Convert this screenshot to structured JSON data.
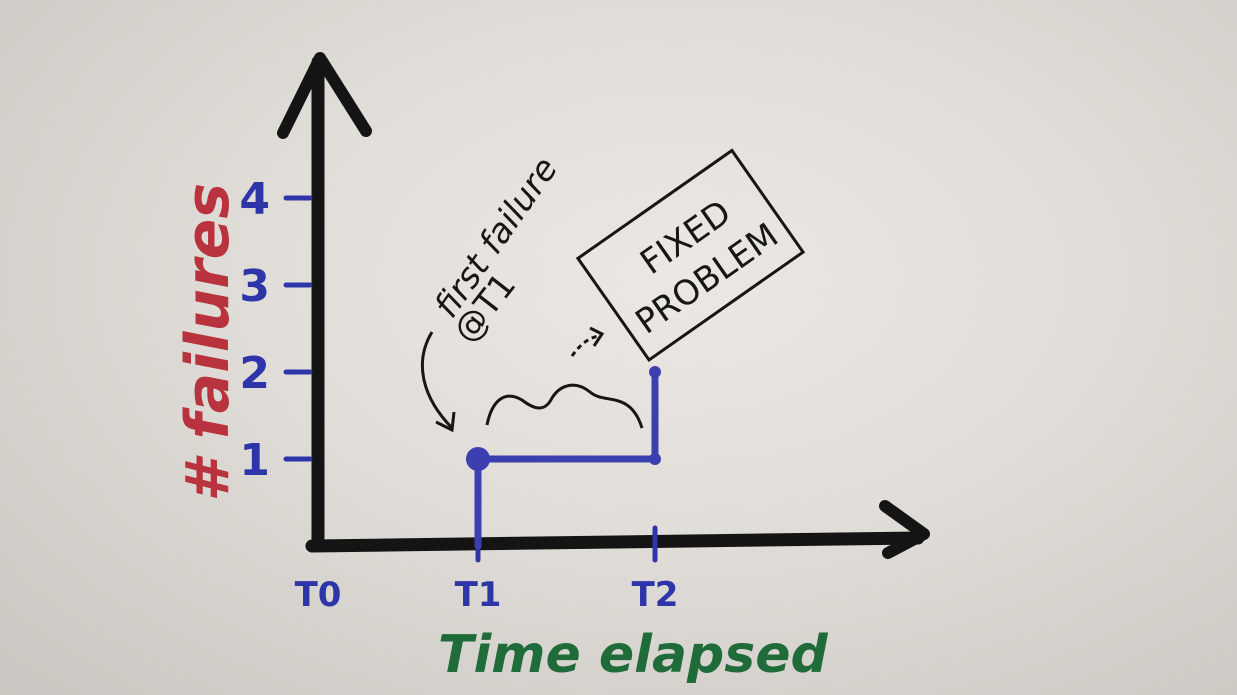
{
  "chart_data": {
    "type": "line",
    "xlabel": "Time elapsed",
    "ylabel": "# failures",
    "x_ticks": [
      "T0",
      "T1",
      "T2"
    ],
    "y_ticks": [
      1,
      2,
      3,
      4
    ],
    "series": [
      {
        "points": [
          {
            "x": "T1",
            "y": 0
          },
          {
            "x": "T1",
            "y": 1
          },
          {
            "x": "T2",
            "y": 1
          },
          {
            "x": "T2",
            "y": 2
          }
        ]
      }
    ],
    "annotations": {
      "first_failure_line1": "first failure",
      "first_failure_line2": "@T1",
      "fixed_line1": "FIXED",
      "fixed_line2": "PROBLEM"
    },
    "colors": {
      "axis": "#141414",
      "series": "#3b3fb0",
      "ylabel": "#b8333d",
      "xlabel": "#1f6b3a",
      "ticks": "#2e35a8"
    }
  }
}
